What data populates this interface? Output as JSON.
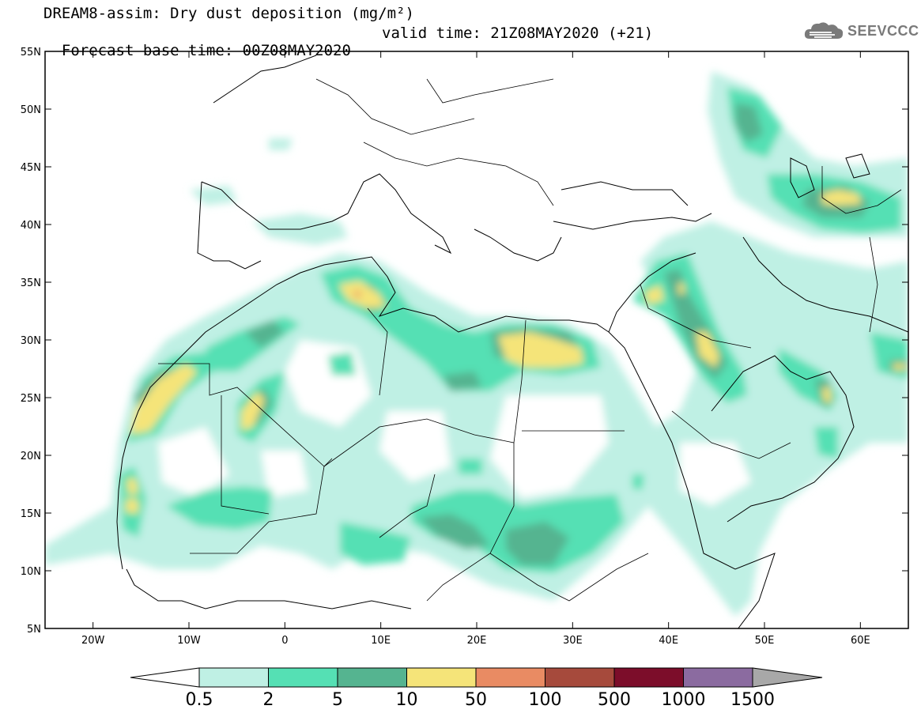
{
  "title": {
    "line1": "DREAM8-assim: Dry dust deposition (mg/m²)",
    "line2_base": "Forecast base time: 00Z08MAY2020",
    "line2_valid": "valid time: 21Z08MAY2020 (+21)"
  },
  "logo": {
    "text": "SEEVCCC",
    "icon": "cloud-icon"
  },
  "map": {
    "lon_range": [
      -25,
      65
    ],
    "lat_range": [
      5,
      55
    ],
    "lat_ticks": [
      "55N",
      "50N",
      "45N",
      "40N",
      "35N",
      "30N",
      "25N",
      "20N",
      "15N",
      "10N",
      "5N"
    ],
    "lon_ticks": [
      "20W",
      "10W",
      "0",
      "10E",
      "20E",
      "30E",
      "40E",
      "50E",
      "60E"
    ]
  },
  "colorbar": {
    "labels": [
      "0.5",
      "2",
      "5",
      "10",
      "50",
      "100",
      "500",
      "1000",
      "1500"
    ],
    "colors": [
      "#bff0e4",
      "#55e0b4",
      "#55b490",
      "#f5e479",
      "#e98b63",
      "#a64a3c",
      "#7c0d2a",
      "#8b6ba0"
    ],
    "under_color": "#ffffff",
    "over_color": "#a8a8a8"
  }
}
